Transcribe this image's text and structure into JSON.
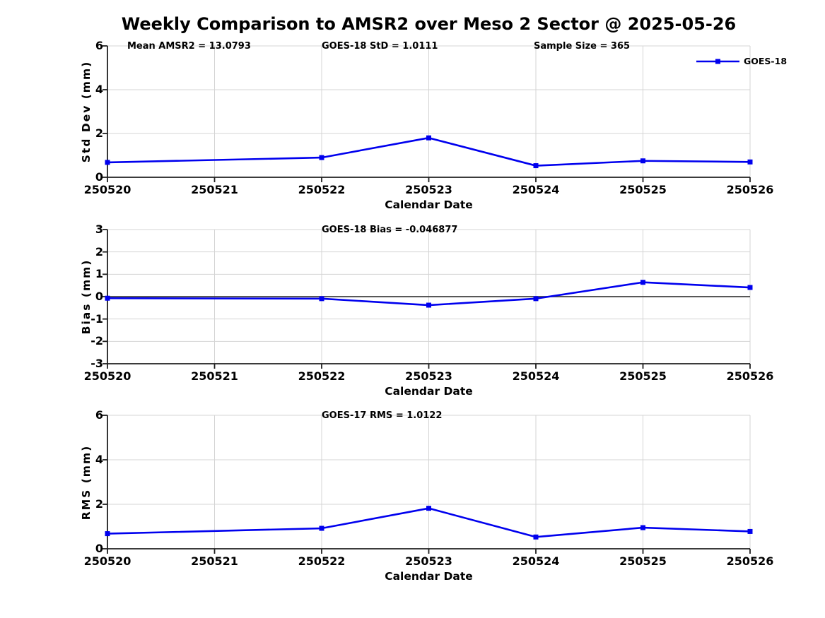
{
  "figure": {
    "title": "Weekly Comparison to AMSR2 over Meso 2 Sector @ 2025-05-26"
  },
  "colors": {
    "series_blue": "#0000EE",
    "grid": "#d4d4d4",
    "axis": "#1f1f1f",
    "zero_line": "#404040",
    "background": "#ffffff",
    "text": "#000000"
  },
  "legend": {
    "label": "GOES-18",
    "position": "top-right",
    "box": false,
    "marker": "square"
  },
  "chart_data": [
    {
      "type": "line",
      "ylabel": "Std Dev (mm)",
      "xlabel": "Calendar Date",
      "ylim": [
        0,
        6
      ],
      "yticks": [
        0,
        2,
        4,
        6
      ],
      "xticks": [
        "250520",
        "250521",
        "250522",
        "250523",
        "250524",
        "250525",
        "250526"
      ],
      "grid": true,
      "annotations": [
        "Mean AMSR2 = 13.0793",
        "GOES-18 StD = 1.0111",
        "Sample Size = 365"
      ],
      "series": [
        {
          "name": "GOES-18",
          "color": "#0000EE",
          "marker": "square",
          "x": [
            "250520",
            "250522",
            "250523",
            "250524",
            "250525",
            "250526"
          ],
          "y": [
            0.68,
            0.9,
            1.8,
            0.53,
            0.75,
            0.7
          ]
        }
      ]
    },
    {
      "type": "line",
      "ylabel": "Bias (mm)",
      "xlabel": "Calendar Date",
      "ylim": [
        -3,
        3
      ],
      "yticks": [
        -3,
        -2,
        -1,
        0,
        1,
        2,
        3
      ],
      "xticks": [
        "250520",
        "250521",
        "250522",
        "250523",
        "250524",
        "250525",
        "250526"
      ],
      "grid": true,
      "zero_line": true,
      "annotations": [
        "GOES-18 Bias  = -0.046877"
      ],
      "series": [
        {
          "name": "GOES-18",
          "color": "#0000EE",
          "marker": "square",
          "x": [
            "250520",
            "250522",
            "250523",
            "250524",
            "250525",
            "250526"
          ],
          "y": [
            -0.07,
            -0.09,
            -0.38,
            -0.09,
            0.64,
            0.41
          ]
        }
      ]
    },
    {
      "type": "line",
      "ylabel": "RMS (mm)",
      "xlabel": "Calendar Date",
      "ylim": [
        0,
        6
      ],
      "yticks": [
        0,
        2,
        4,
        6
      ],
      "xticks": [
        "250520",
        "250521",
        "250522",
        "250523",
        "250524",
        "250525",
        "250526"
      ],
      "grid": true,
      "annotations": [
        "GOES-17 RMS = 1.0122"
      ],
      "series": [
        {
          "name": "GOES-18",
          "color": "#0000EE",
          "marker": "square",
          "x": [
            "250520",
            "250522",
            "250523",
            "250524",
            "250525",
            "250526"
          ],
          "y": [
            0.68,
            0.92,
            1.82,
            0.53,
            0.95,
            0.78
          ]
        }
      ]
    }
  ]
}
